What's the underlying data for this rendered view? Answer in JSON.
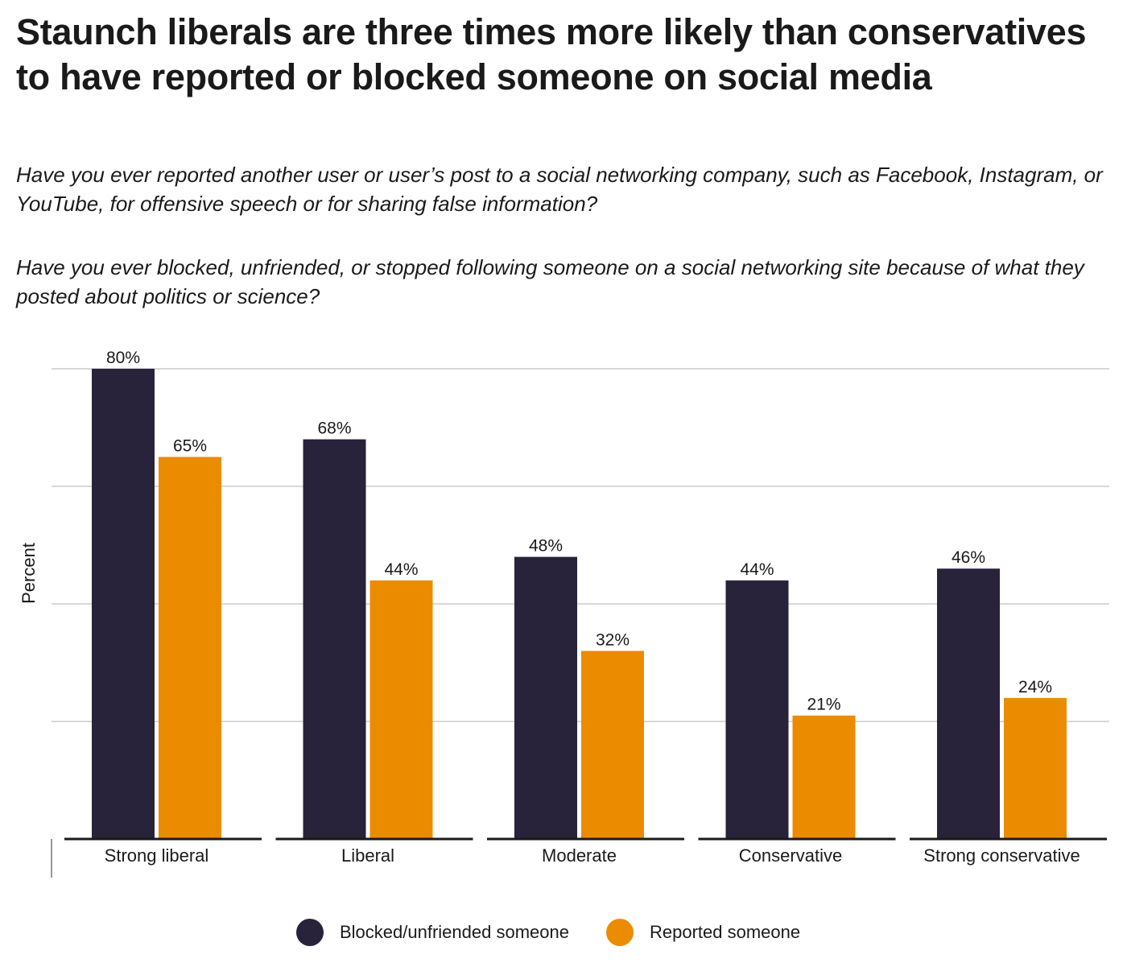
{
  "title": "Staunch liberals are three times more likely than conservatives to have reported or blocked someone on social media",
  "questions": [
    "Have you ever reported another user or user’s post to a social networking company, such as Facebook, Instagram, or YouTube, for offensive speech or for sharing false information?",
    "Have you ever blocked, unfriended, or stopped following someone on a social networking site because of what they posted about politics or science?"
  ],
  "colors": {
    "blocked": "#28223b",
    "reported": "#eb8c00",
    "grid": "#cccccc",
    "axis": "#1a1a1a"
  },
  "chart_data": {
    "type": "bar",
    "title": "Staunch liberals are three times more likely than conservatives to have reported or blocked someone on social media",
    "xlabel": "",
    "ylabel": "Percent",
    "ylim": [
      0,
      80
    ],
    "gridlines": [
      20,
      40,
      60,
      80
    ],
    "legend_position": "bottom",
    "value_suffix": "%",
    "categories": [
      "Strong liberal",
      "Liberal",
      "Moderate",
      "Conservative",
      "Strong conservative"
    ],
    "series": [
      {
        "key": "blocked",
        "name": "Blocked/unfriended someone",
        "values": [
          80,
          68,
          48,
          44,
          46
        ]
      },
      {
        "key": "reported",
        "name": "Reported someone",
        "values": [
          65,
          44,
          32,
          21,
          24
        ]
      }
    ]
  }
}
